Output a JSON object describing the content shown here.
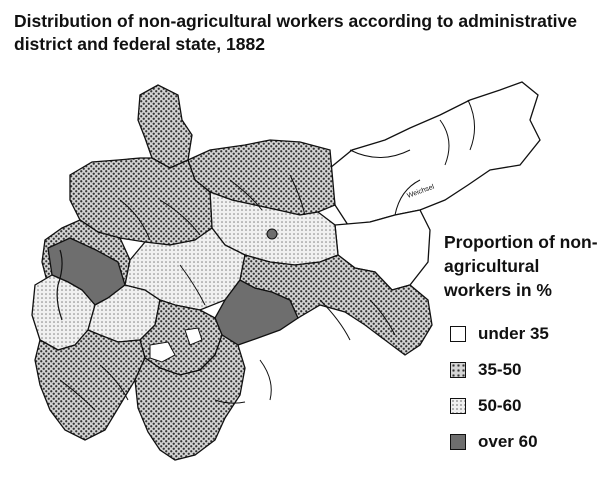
{
  "map": {
    "title": "Distribution of non-agricultural workers according to administrative district and federal state, 1882",
    "legend": {
      "title": "Proportion of non-agricultural workers in %",
      "items": [
        {
          "label": "under 35",
          "pattern": "white"
        },
        {
          "label": "35-50",
          "pattern": "dense-dots"
        },
        {
          "label": "50-60",
          "pattern": "light-dots"
        },
        {
          "label": "over 60",
          "pattern": "dark-grey"
        }
      ]
    },
    "colors": {
      "dark_grey": "#6e6e6e",
      "line": "#111111"
    },
    "place_label": "Weichsel"
  }
}
